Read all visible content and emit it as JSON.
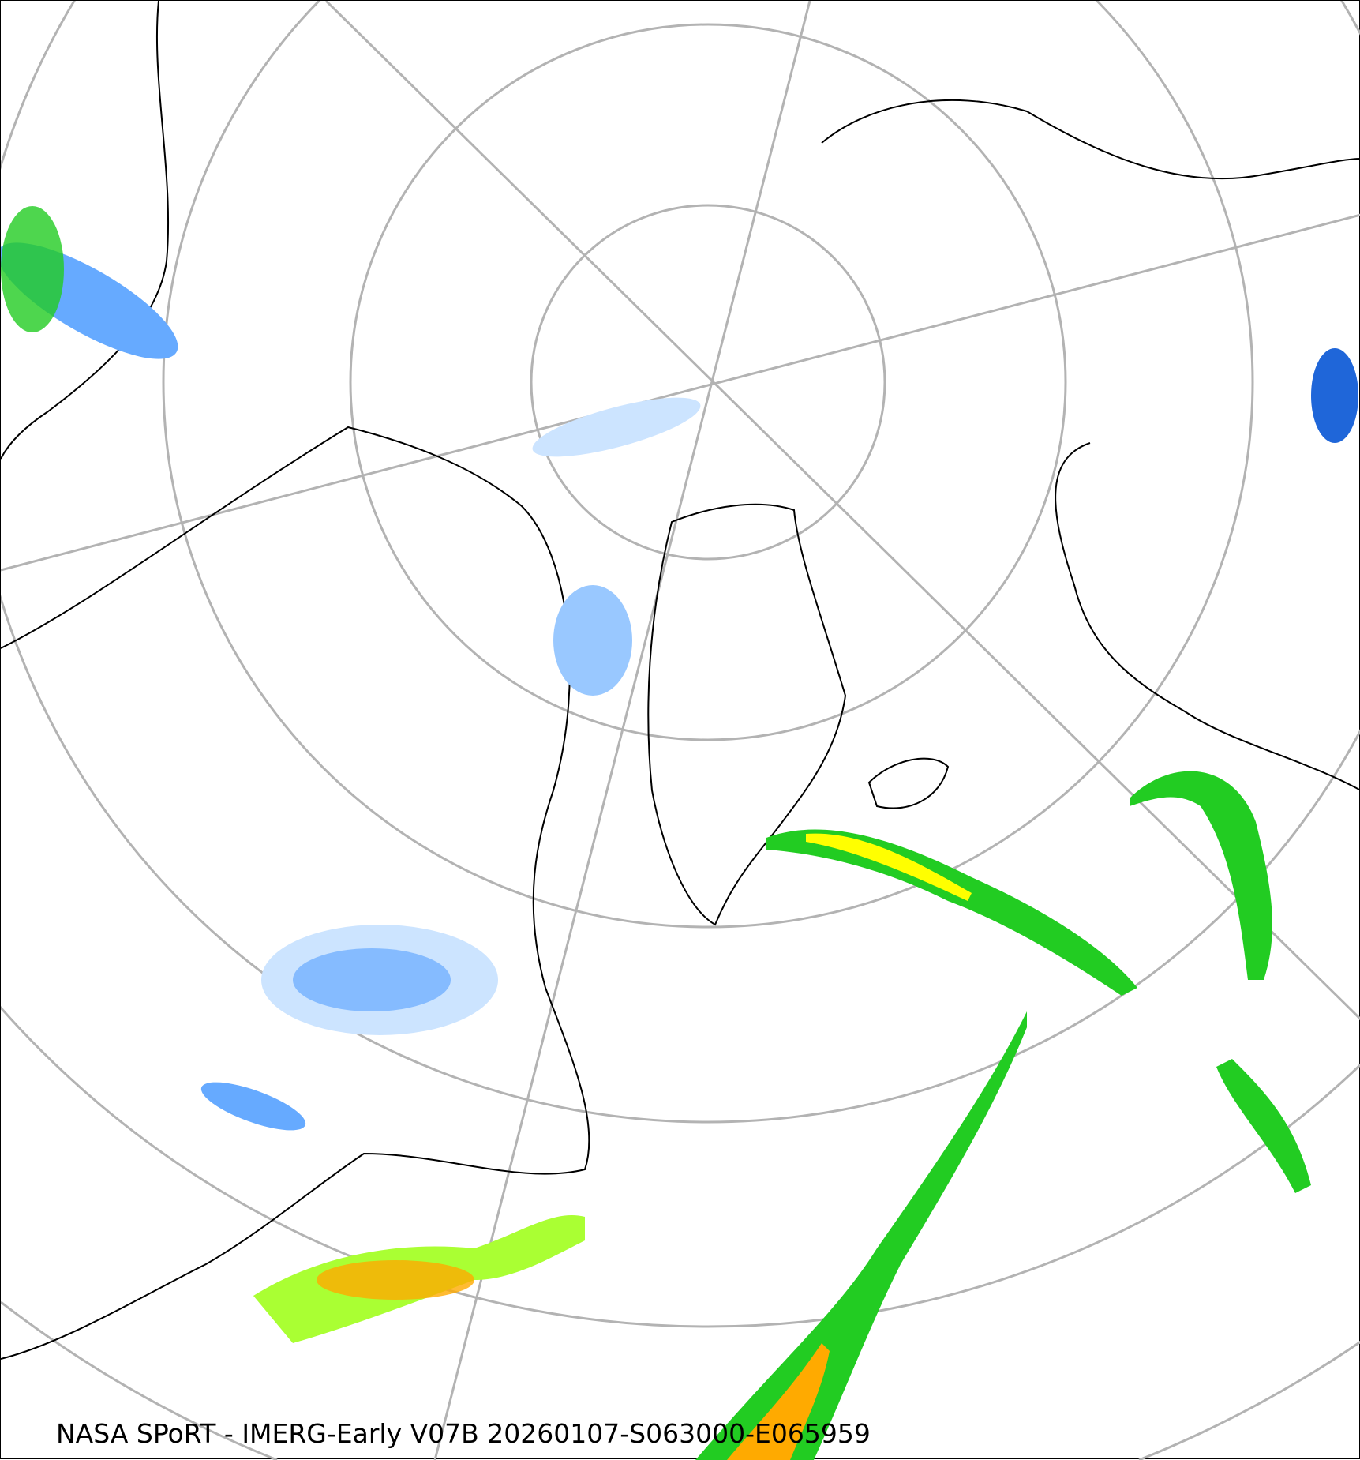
{
  "caption": "NASA SPoRT - IMERG-Early V07B 20260107-S063000-E065959",
  "map": {
    "projection": "north-polar-stereographic",
    "graticule_color": "#b3b3b3",
    "coastline_color": "#000000",
    "precip_colors": [
      "#cce4ff",
      "#66aaff",
      "#1f66d9",
      "#0a6b0a",
      "#22cc22",
      "#aaff33",
      "#ffff00",
      "#ffaa00",
      "#ff6600",
      "#ff0000",
      "#ff33cc"
    ]
  }
}
